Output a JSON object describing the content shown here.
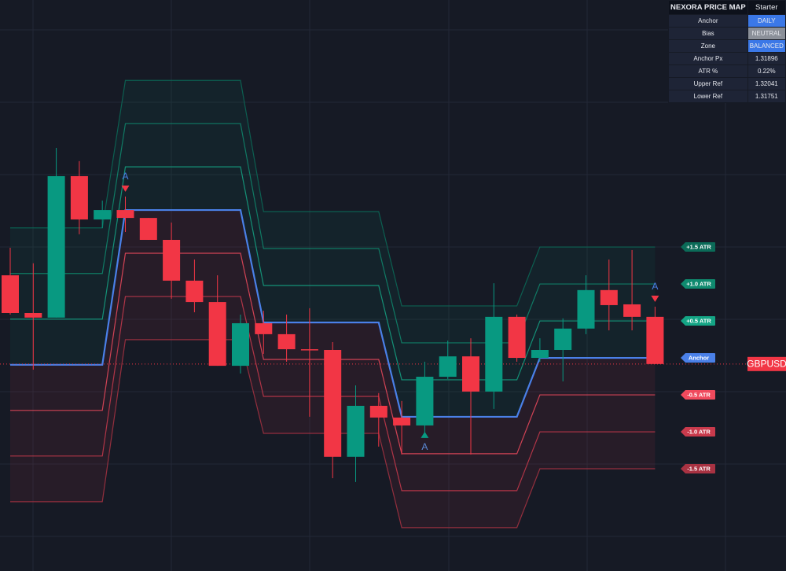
{
  "chart_data": {
    "type": "candlestick",
    "symbol": "GBPUSD",
    "ylim": [
      1.3106,
      1.333
    ],
    "up_color": "#089981",
    "down_color": "#f23645",
    "open": [
      1.3222,
      1.32072,
      1.32054,
      1.32609,
      1.32439,
      1.32476,
      1.32445,
      1.32359,
      1.32199,
      1.32115,
      1.31865,
      1.32032,
      1.31989,
      1.3193,
      1.31927,
      1.31508,
      1.31708,
      1.31662,
      1.31631,
      1.31822,
      1.31902,
      1.31764,
      1.32057,
      1.31896,
      1.31927,
      1.32011,
      1.32162,
      1.32106,
      1.32057
    ],
    "high": [
      1.32328,
      1.32267,
      1.3272,
      1.32668,
      1.32513,
      1.32529,
      1.32445,
      1.32427,
      1.32282,
      1.3222,
      1.32066,
      1.32081,
      1.32066,
      1.32091,
      1.31958,
      1.31788,
      1.31758,
      1.31727,
      1.31881,
      1.31964,
      1.31973,
      1.32189,
      1.32066,
      1.31973,
      1.32051,
      1.3222,
      1.32282,
      1.32319,
      1.32097
    ],
    "low": [
      1.32066,
      1.3185,
      1.32054,
      1.32381,
      1.32405,
      1.3239,
      1.32359,
      1.32128,
      1.32075,
      1.31865,
      1.31835,
      1.31912,
      1.31881,
      1.31665,
      1.31424,
      1.31409,
      1.31548,
      1.31517,
      1.31588,
      1.31813,
      1.31517,
      1.31696,
      1.31881,
      1.31881,
      1.31804,
      1.31989,
      1.32004,
      1.32004,
      1.31872
    ],
    "close": [
      1.32072,
      1.32054,
      1.32609,
      1.32439,
      1.32476,
      1.32445,
      1.32359,
      1.32199,
      1.32115,
      1.31865,
      1.32032,
      1.31989,
      1.3193,
      1.31927,
      1.31508,
      1.31708,
      1.31662,
      1.31631,
      1.31822,
      1.31902,
      1.31764,
      1.32057,
      1.31896,
      1.31927,
      1.32011,
      1.32162,
      1.32103,
      1.32057,
      1.31872
    ],
    "anchor": [
      1.31869,
      1.31869,
      1.31869,
      1.31869,
      1.31869,
      1.32476,
      1.32476,
      1.32476,
      1.32476,
      1.32476,
      1.32476,
      1.32035,
      1.32035,
      1.32035,
      1.32035,
      1.32035,
      1.32035,
      1.31665,
      1.31665,
      1.31665,
      1.31665,
      1.31665,
      1.31665,
      1.31896,
      1.31896,
      1.31896,
      1.31896,
      1.31896,
      1.31896
    ],
    "atr": [
      0.00358,
      0.00358,
      0.00358,
      0.00358,
      0.00358,
      0.00339,
      0.00339,
      0.00339,
      0.00339,
      0.00339,
      0.00339,
      0.0029,
      0.0029,
      0.0029,
      0.0029,
      0.0029,
      0.0029,
      0.0029,
      0.0029,
      0.0029,
      0.0029,
      0.0029,
      0.0029,
      0.0029,
      0.0029,
      0.0029,
      0.0029,
      0.0029,
      0.0029
    ],
    "levels": [
      {
        "label": "+1.5 ATR",
        "multiplier": 1.5,
        "color": "#0b6b58"
      },
      {
        "label": "+1.0 ATR",
        "multiplier": 1.0,
        "color": "#0f8a6f"
      },
      {
        "label": "+0.5 ATR",
        "multiplier": 0.5,
        "color": "#14a585"
      },
      {
        "label": "Anchor",
        "multiplier": 0,
        "color": "#4a80e8"
      },
      {
        "label": "-0.5 ATR",
        "multiplier": -0.5,
        "color": "#f04a5d"
      },
      {
        "label": "-1.0 ATR",
        "multiplier": -1.0,
        "color": "#c93a4c"
      },
      {
        "label": "-1.5 ATR",
        "multiplier": -1.5,
        "color": "#a83242"
      }
    ],
    "signals": [
      {
        "index": 5,
        "label": "A",
        "direction": "down"
      },
      {
        "index": 18,
        "label": "A",
        "direction": "up"
      },
      {
        "index": 28,
        "label": "A",
        "direction": "down"
      }
    ]
  },
  "table": {
    "header": [
      "NEXORA PRICE MAP",
      "Starter"
    ],
    "rows": [
      {
        "label": "Anchor",
        "value": "DAILY",
        "color": "#3b78e7"
      },
      {
        "label": "Bias",
        "value": "NEUTRAL",
        "color": "#8b9099"
      },
      {
        "label": "Zone",
        "value": "BALANCED",
        "color": "#3b78e7"
      },
      {
        "label": "Anchor Px",
        "value": "1.31896"
      },
      {
        "label": "ATR %",
        "value": "0.22%"
      },
      {
        "label": "Upper Ref",
        "value": "1.32041"
      },
      {
        "label": "Lower Ref",
        "value": "1.31751"
      }
    ]
  }
}
